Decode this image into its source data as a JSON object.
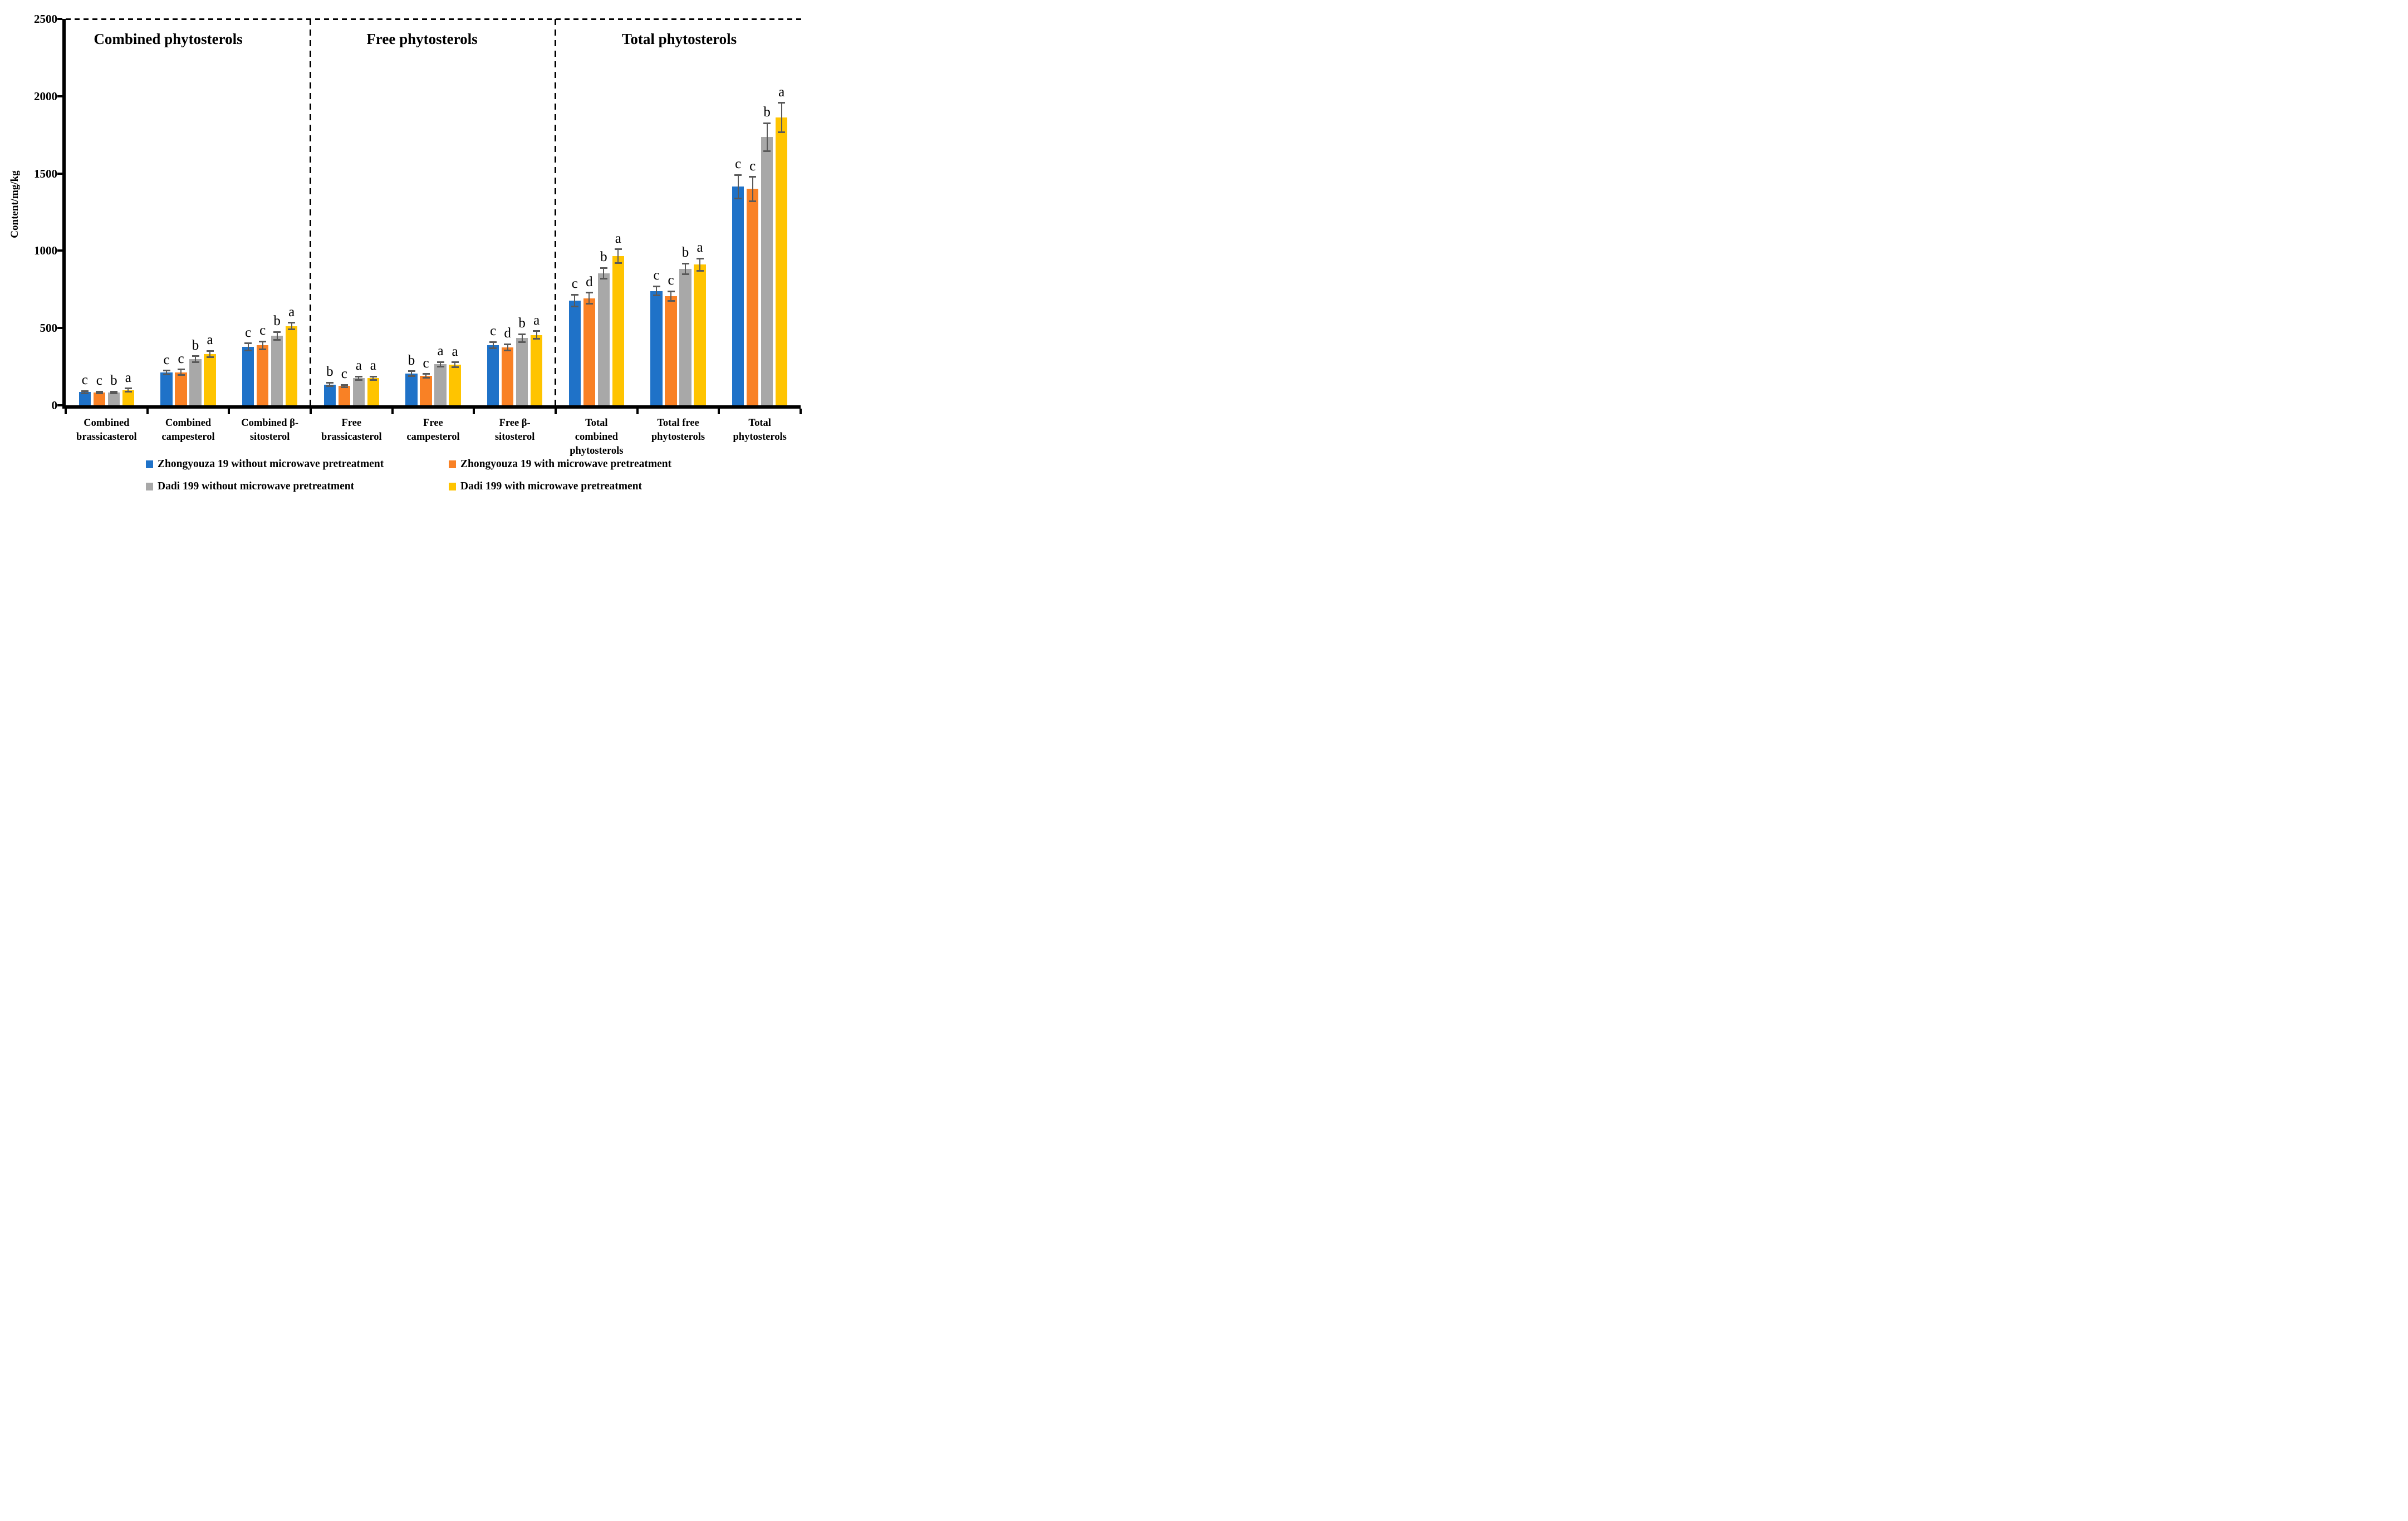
{
  "chart_data": {
    "type": "bar",
    "ylabel": "Content/mg/kg",
    "ylim": [
      0,
      2500
    ],
    "ytick_step": 500,
    "yticks": [
      "0",
      "500",
      "1000",
      "1500",
      "2000",
      "2500"
    ],
    "grid": false,
    "legend_position": "bottom",
    "sections": [
      {
        "title": "Combined phytosterols",
        "category_indexes": [
          0,
          1,
          2
        ]
      },
      {
        "title": "Free phytosterols",
        "category_indexes": [
          3,
          4,
          5
        ]
      },
      {
        "title": "Total phytosterols",
        "category_indexes": [
          6,
          7,
          8
        ]
      }
    ],
    "categories": [
      {
        "id": "combined-brassicasterol",
        "lines": [
          "Combined",
          "brassicasterol"
        ]
      },
      {
        "id": "combined-campesterol",
        "lines": [
          "Combined",
          "campesterol"
        ]
      },
      {
        "id": "combined-beta-sitosterol",
        "lines": [
          "Combined β-",
          "sitosterol"
        ]
      },
      {
        "id": "free-brassicasterol",
        "lines": [
          "Free",
          "brassicasterol"
        ]
      },
      {
        "id": "free-campesterol",
        "lines": [
          "Free",
          "campesterol"
        ]
      },
      {
        "id": "free-beta-sitosterol",
        "lines": [
          "Free β-",
          "sitosterol"
        ]
      },
      {
        "id": "total-combined-phytosterols",
        "lines": [
          "Total",
          "combined",
          "phytosterols"
        ]
      },
      {
        "id": "total-free-phytosterols",
        "lines": [
          "Total free",
          "phytosterols"
        ]
      },
      {
        "id": "total-phytosterols",
        "lines": [
          "Total",
          "phytosterols"
        ]
      }
    ],
    "series": [
      {
        "name": "Zhongyouza 19 without microwave pretreatment",
        "color": "#1F72C8",
        "values": [
          85,
          212,
          378,
          135,
          205,
          390,
          678,
          740,
          1415
        ],
        "errors": [
          8,
          12,
          22,
          12,
          15,
          20,
          38,
          30,
          75
        ],
        "letters": [
          "c",
          "c",
          "c",
          "b",
          "b",
          "c",
          "c",
          "c",
          "c"
        ]
      },
      {
        "name": "Zhongyouza 19 with microwave pretreatment",
        "color": "#F98125",
        "values": [
          84,
          214,
          388,
          125,
          190,
          375,
          693,
          707,
          1400
        ],
        "errors": [
          5,
          18,
          25,
          8,
          12,
          20,
          35,
          30,
          78
        ],
        "letters": [
          "c",
          "c",
          "c",
          "c",
          "c",
          "d",
          "d",
          "c",
          "c"
        ]
      },
      {
        "name": "Dadi 199 without microwave pretreatment",
        "color": "#A8A8A8",
        "values": [
          84,
          298,
          450,
          175,
          265,
          435,
          853,
          883,
          1735
        ],
        "errors": [
          5,
          20,
          25,
          12,
          15,
          25,
          35,
          35,
          90
        ],
        "letters": [
          "b",
          "b",
          "b",
          "a",
          "a",
          "b",
          "b",
          "b",
          "b"
        ]
      },
      {
        "name": "Dadi 199 with microwave pretreatment",
        "color": "#FFC400",
        "values": [
          99,
          332,
          512,
          175,
          263,
          455,
          965,
          910,
          1862
        ],
        "errors": [
          10,
          20,
          22,
          12,
          15,
          25,
          45,
          40,
          95
        ],
        "letters": [
          "a",
          "a",
          "a",
          "a",
          "a",
          "a",
          "a",
          "a",
          "a"
        ]
      }
    ],
    "error_bar_color": "#595959",
    "axis_color": "#000000"
  }
}
